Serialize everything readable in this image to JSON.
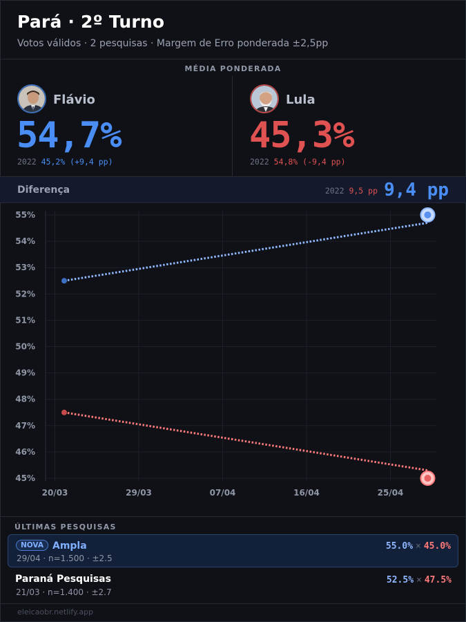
{
  "header": {
    "title": "Pará · 2º Turno",
    "subtitle": "Votos válidos · 2 pesquisas · Margem de Erro ponderada ±2,5pp"
  },
  "average": {
    "label": "MÉDIA PONDERADA",
    "candidates": [
      {
        "name": "Flávio",
        "pct": "54,7%",
        "prev_year": "2022",
        "prev_value": "45,2% (+9,4 pp)",
        "color": "#4a8ef5"
      },
      {
        "name": "Lula",
        "pct": "45,3%",
        "prev_year": "2022",
        "prev_value": "54,8% (-9,4 pp)",
        "color": "#e05252"
      }
    ]
  },
  "difference": {
    "label": "Diferença",
    "prev_year": "2022",
    "prev_value": "9,5 pp",
    "value": "9,4 pp"
  },
  "chart_data": {
    "type": "line",
    "x_ticks": [
      "20/03",
      "29/03",
      "07/04",
      "16/04",
      "25/04"
    ],
    "y_ticks": [
      "55%",
      "54%",
      "53%",
      "52%",
      "51%",
      "50%",
      "49%",
      "48%",
      "47%",
      "46%",
      "45%"
    ],
    "ylim": [
      45,
      55
    ],
    "xlim": [
      "2025-03-19",
      "2025-04-30"
    ],
    "series": [
      {
        "color": "#8fb8ff",
        "points": [
          {
            "x": "2025-03-21",
            "y": 52.5
          },
          {
            "x": "2025-04-29",
            "y": 55.0
          }
        ],
        "trend_end": 54.7
      },
      {
        "color": "#ff7a7a",
        "points": [
          {
            "x": "2025-03-21",
            "y": 47.5
          },
          {
            "x": "2025-04-29",
            "y": 45.0
          }
        ],
        "trend_end": 45.3
      }
    ],
    "grid": true,
    "legend": "none"
  },
  "polls": {
    "label": "ÚLTIMAS PESQUISAS",
    "items": [
      {
        "badge": "NOVA",
        "name": "Ampla",
        "meta": "29/04 · n=1.500 · ±2.5",
        "a": "55.0%",
        "sep": "×",
        "b": "45.0%"
      },
      {
        "badge": "",
        "name": "Paraná Pesquisas",
        "meta": "21/03 · n=1.400 · ±2.7",
        "a": "52.5%",
        "sep": "×",
        "b": "47.5%"
      }
    ]
  },
  "footer": {
    "text": "eleicaobr.netlify.app"
  }
}
